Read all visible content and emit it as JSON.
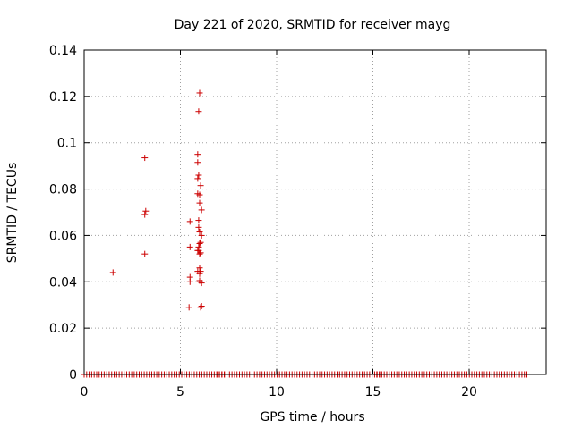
{
  "chart_data": {
    "type": "scatter",
    "title": "Day 221 of 2020, SRMTID for receiver mayg",
    "xlabel": "GPS time / hours",
    "ylabel": "SRMTID / TECUs",
    "xlim": [
      0,
      24
    ],
    "ylim": [
      0,
      0.14
    ],
    "xticks": [
      0,
      5,
      10,
      15,
      20
    ],
    "xtick_labels": [
      "0",
      "5",
      "10",
      "15",
      "20"
    ],
    "yticks": [
      0,
      0.02,
      0.04,
      0.06,
      0.08,
      0.1,
      0.12,
      0.14
    ],
    "ytick_labels": [
      "0",
      "0.02",
      "0.04",
      "0.06",
      "0.08",
      "0.1",
      "0.12",
      "0.14"
    ],
    "grid": true,
    "marker": "plus",
    "color": "#cc0000",
    "series": [
      {
        "name": "SRMTID",
        "points": [
          [
            1.5,
            0.044
          ],
          [
            3.15,
            0.0935
          ],
          [
            3.2,
            0.0705
          ],
          [
            3.15,
            0.069
          ],
          [
            3.15,
            0.052
          ],
          [
            5.5,
            0.066
          ],
          [
            5.5,
            0.055
          ],
          [
            5.5,
            0.042
          ],
          [
            5.5,
            0.04
          ],
          [
            5.45,
            0.029
          ],
          [
            6.0,
            0.1215
          ],
          [
            5.95,
            0.1135
          ],
          [
            5.9,
            0.095
          ],
          [
            5.9,
            0.0915
          ],
          [
            5.95,
            0.086
          ],
          [
            5.9,
            0.0845
          ],
          [
            6.05,
            0.0815
          ],
          [
            5.9,
            0.078
          ],
          [
            6.0,
            0.0775
          ],
          [
            6.0,
            0.074
          ],
          [
            6.1,
            0.071
          ],
          [
            5.95,
            0.0665
          ],
          [
            5.95,
            0.0635
          ],
          [
            6.0,
            0.0615
          ],
          [
            6.1,
            0.06
          ],
          [
            6.05,
            0.057
          ],
          [
            6.0,
            0.0565
          ],
          [
            5.95,
            0.055
          ],
          [
            5.9,
            0.0535
          ],
          [
            6.05,
            0.0525
          ],
          [
            6.0,
            0.052
          ],
          [
            5.95,
            0.0535
          ],
          [
            6.0,
            0.046
          ],
          [
            6.05,
            0.0445
          ],
          [
            5.9,
            0.0445
          ],
          [
            6.0,
            0.0435
          ],
          [
            6.0,
            0.0405
          ],
          [
            6.1,
            0.0395
          ],
          [
            6.1,
            0.0295
          ],
          [
            6.05,
            0.029
          ]
        ],
        "zero_series_ranges": [
          [
            0,
            7.3
          ],
          [
            6.9,
            15.4
          ],
          [
            15.2,
            23.0
          ]
        ],
        "zero_series_step": 0.13
      }
    ]
  }
}
